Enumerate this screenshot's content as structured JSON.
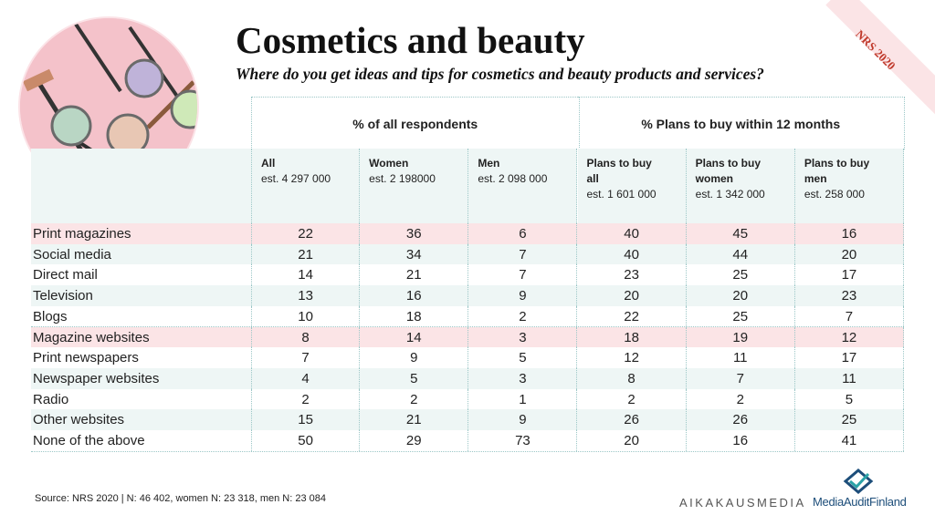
{
  "header": {
    "title": "Cosmetics and beauty",
    "subtitle": "Where do you get ideas and tips for cosmetics and beauty products and services?",
    "ribbon": "NRS 2020"
  },
  "chart_data": {
    "type": "table",
    "groups": [
      {
        "label": "% of all respondents",
        "span": 3
      },
      {
        "label": "% Plans to buy within 12 months",
        "span": 3
      }
    ],
    "columns": [
      {
        "name": "All",
        "est": "est. 4 297 000"
      },
      {
        "name": "Women",
        "est": "est. 2 198000"
      },
      {
        "name": "Men",
        "est": "est. 2 098 000"
      },
      {
        "name": "Plans to buy",
        "name2": "all",
        "est": "est. 1 601 000"
      },
      {
        "name": "Plans to buy",
        "name2": "women",
        "est": "est. 1 342 000"
      },
      {
        "name": "Plans to buy",
        "name2": "men",
        "est": "est. 258 000"
      }
    ],
    "rows": [
      {
        "label": "Print magazines",
        "values": [
          22,
          36,
          6,
          40,
          45,
          16
        ]
      },
      {
        "label": "Social media",
        "values": [
          21,
          34,
          7,
          40,
          44,
          20
        ]
      },
      {
        "label": "Direct mail",
        "values": [
          14,
          21,
          7,
          23,
          25,
          17
        ]
      },
      {
        "label": "Television",
        "values": [
          13,
          16,
          9,
          20,
          20,
          23
        ]
      },
      {
        "label": "Blogs",
        "values": [
          10,
          18,
          2,
          22,
          25,
          7
        ]
      },
      {
        "label": "Magazine websites",
        "values": [
          8,
          14,
          3,
          18,
          19,
          12
        ]
      },
      {
        "label": "Print newspapers",
        "values": [
          7,
          9,
          5,
          12,
          11,
          17
        ]
      },
      {
        "label": "Newspaper websites",
        "values": [
          4,
          5,
          3,
          8,
          7,
          11
        ]
      },
      {
        "label": "Radio",
        "values": [
          2,
          2,
          1,
          2,
          2,
          5
        ]
      },
      {
        "label": "Other websites",
        "values": [
          15,
          21,
          9,
          26,
          26,
          25
        ]
      },
      {
        "label": "None of the above",
        "values": [
          50,
          29,
          73,
          20,
          16,
          41
        ]
      }
    ],
    "row_fills": [
      "#fbe4e6",
      "#eef6f5",
      "#ffffff",
      "#eef6f5",
      "#ffffff",
      "#fbe4e6",
      "#ffffff",
      "#eef6f5",
      "#ffffff",
      "#eef6f5",
      "#ffffff"
    ]
  },
  "footer": {
    "source": "Source: NRS 2020 | N: 46 402, women N: 23 318, men N: 23 084",
    "logo_aikakausmedia": "AIKAKAUSMEDIA",
    "logo_mediaaudit": "MediaAuditFinland"
  },
  "colors": {
    "pink": "#fbe4e6",
    "mint": "#eef6f5",
    "grid": "#9cc7c7",
    "brand_blue": "#1d4e7a"
  },
  "icons": [
    "cosmetics-photo",
    "mediaaudit-logo-icon"
  ]
}
